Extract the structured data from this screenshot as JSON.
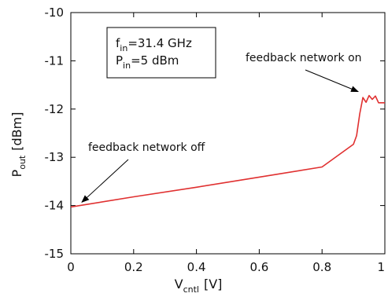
{
  "chart_data": {
    "type": "line",
    "title": "",
    "xlabel": {
      "main": "V",
      "sub": "cntl",
      "unit": "[V]"
    },
    "ylabel": {
      "main": "P",
      "sub": "out",
      "unit": "[dBm]"
    },
    "xlim": [
      0,
      1
    ],
    "ylim": [
      -15,
      -10
    ],
    "xticks": [
      0,
      0.2,
      0.4,
      0.6,
      0.8,
      1
    ],
    "xtick_labels": [
      "0",
      "0.2",
      "0.4",
      "0.6",
      "0.8",
      "1"
    ],
    "yticks": [
      -15,
      -14,
      -13,
      -12,
      -11,
      -10
    ],
    "ytick_labels": [
      "-15",
      "-14",
      "-13",
      "-12",
      "-11",
      "-10"
    ],
    "grid": false,
    "series": [
      {
        "color": "#e03030",
        "x": [
          0,
          0.2,
          0.4,
          0.6,
          0.8,
          0.9,
          0.91,
          0.92,
          0.93,
          0.94,
          0.95,
          0.96,
          0.97,
          0.98,
          0.99,
          1.0
        ],
        "y": [
          -14.03,
          -13.82,
          -13.62,
          -13.41,
          -13.2,
          -12.73,
          -12.55,
          -12.1,
          -11.76,
          -11.86,
          -11.72,
          -11.8,
          -11.73,
          -11.87,
          -11.87,
          -11.87
        ]
      }
    ],
    "conditions_box": {
      "line1": {
        "main": "f",
        "sub": "in",
        "rest": "=31.4 GHz"
      },
      "line2": {
        "main": "P",
        "sub": "in",
        "rest": "=5 dBm"
      }
    },
    "annotations": [
      {
        "text": "feedback network off",
        "target": {
          "x": 0.0,
          "y": -13.98
        }
      },
      {
        "text": "feedback network on",
        "target": {
          "x": 0.93,
          "y": -11.72
        }
      }
    ]
  }
}
